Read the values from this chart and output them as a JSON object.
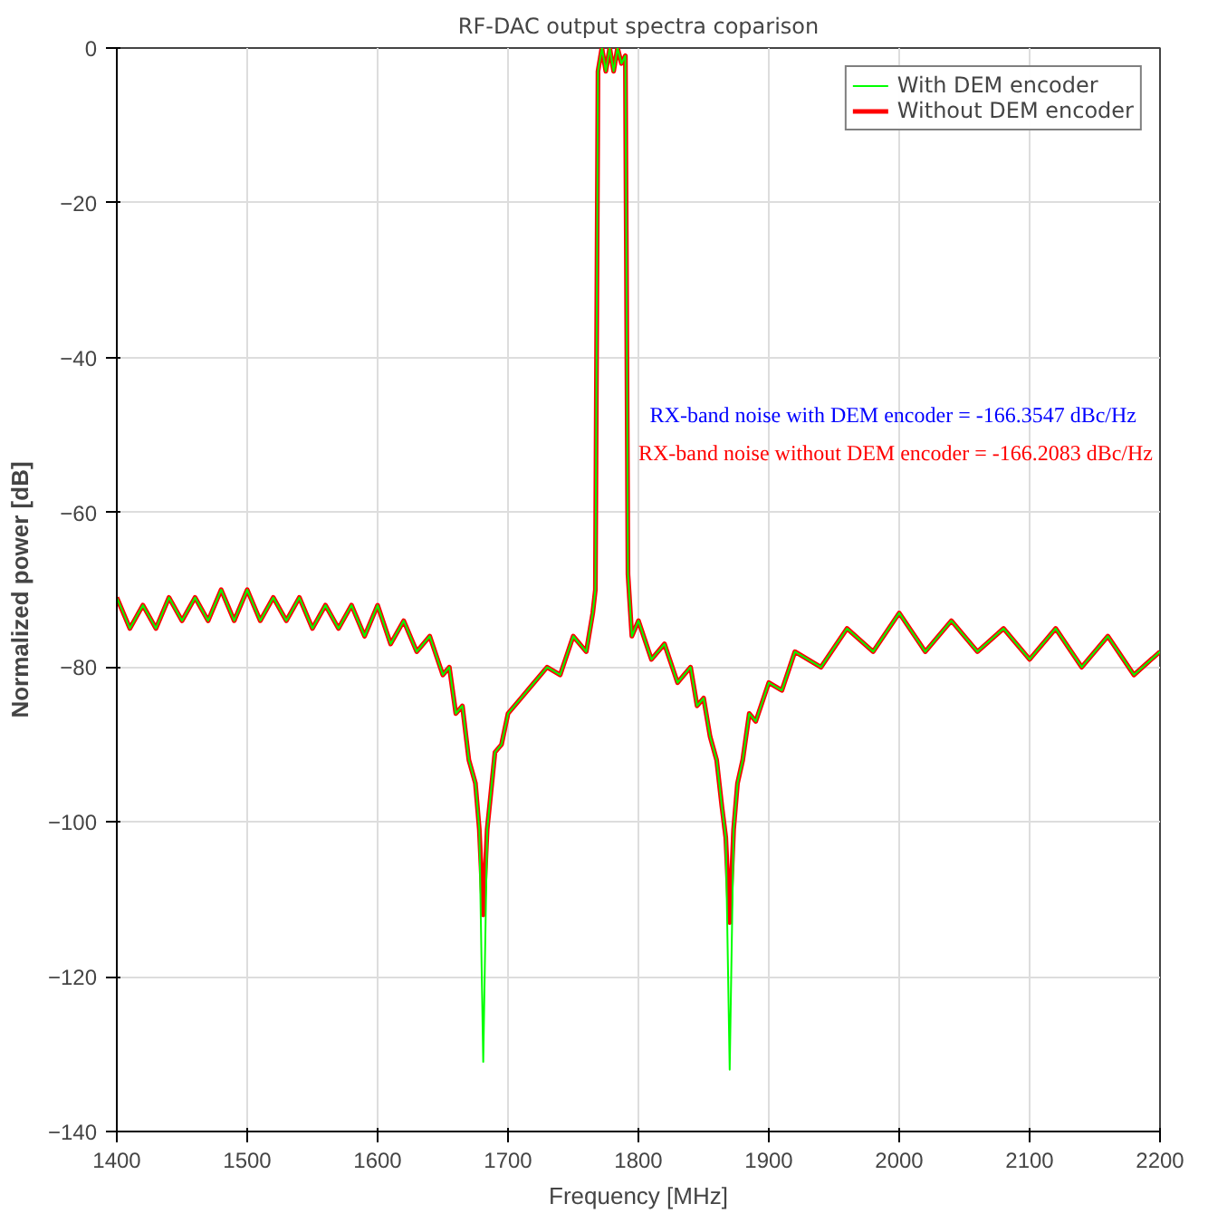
{
  "chart_data": {
    "type": "line",
    "title": "RF-DAC output spectra coparison",
    "xlabel": "Frequency [MHz]",
    "ylabel": "Normalized power [dB]",
    "xlim": [
      1400,
      2200
    ],
    "ylim": [
      -140,
      0
    ],
    "xticks": [
      1400,
      1500,
      1600,
      1700,
      1800,
      1900,
      2000,
      2100,
      2200
    ],
    "yticks": [
      -140,
      -120,
      -100,
      -80,
      -60,
      -40,
      -20,
      0
    ],
    "grid": true,
    "legend": "top right",
    "x": [
      1400,
      1410,
      1420,
      1430,
      1440,
      1450,
      1460,
      1470,
      1480,
      1490,
      1500,
      1510,
      1520,
      1530,
      1540,
      1550,
      1560,
      1570,
      1580,
      1590,
      1600,
      1610,
      1620,
      1630,
      1640,
      1650,
      1655,
      1660,
      1665,
      1670,
      1675,
      1678,
      1681,
      1684,
      1687,
      1690,
      1695,
      1700,
      1710,
      1720,
      1730,
      1740,
      1750,
      1760,
      1765,
      1767,
      1769,
      1772,
      1775,
      1778,
      1781,
      1784,
      1787,
      1790,
      1792,
      1795,
      1800,
      1810,
      1820,
      1830,
      1840,
      1845,
      1850,
      1855,
      1860,
      1864,
      1867,
      1870,
      1873,
      1876,
      1880,
      1885,
      1890,
      1900,
      1910,
      1920,
      1940,
      1960,
      1980,
      2000,
      2020,
      2040,
      2060,
      2080,
      2100,
      2120,
      2140,
      2160,
      2180,
      2200
    ],
    "series": [
      {
        "name": "With DEM encoder",
        "color": "#00ff00",
        "values": [
          -71,
          -75,
          -72,
          -75,
          -71,
          -74,
          -71,
          -74,
          -70,
          -74,
          -70,
          -74,
          -71,
          -74,
          -71,
          -75,
          -72,
          -75,
          -72,
          -76,
          -72,
          -77,
          -74,
          -78,
          -76,
          -81,
          -80,
          -86,
          -85,
          -92,
          -95,
          -101,
          -131,
          -101,
          -96,
          -91,
          -90,
          -86,
          -84,
          -82,
          -80,
          -81,
          -76,
          -78,
          -73,
          -70,
          -3,
          0,
          -3,
          0,
          -3,
          0,
          -2,
          -1,
          -68,
          -76,
          -74,
          -79,
          -77,
          -82,
          -80,
          -85,
          -84,
          -89,
          -92,
          -98,
          -102,
          -132,
          -101,
          -95,
          -92,
          -86,
          -87,
          -82,
          -83,
          -78,
          -80,
          -75,
          -78,
          -73,
          -78,
          -74,
          -78,
          -75,
          -79,
          -75,
          -80,
          -76,
          -81,
          -78
        ]
      },
      {
        "name": "Without DEM encoder",
        "color": "#ff0000",
        "values": [
          -71,
          -75,
          -72,
          -75,
          -71,
          -74,
          -71,
          -74,
          -70,
          -74,
          -70,
          -74,
          -71,
          -74,
          -71,
          -75,
          -72,
          -75,
          -72,
          -76,
          -72,
          -77,
          -74,
          -78,
          -76,
          -81,
          -80,
          -86,
          -85,
          -92,
          -95,
          -101,
          -112,
          -101,
          -96,
          -91,
          -90,
          -86,
          -84,
          -82,
          -80,
          -81,
          -76,
          -78,
          -73,
          -70,
          -3,
          0,
          -3,
          0,
          -3,
          0,
          -2,
          -1,
          -68,
          -76,
          -74,
          -79,
          -77,
          -82,
          -80,
          -85,
          -84,
          -89,
          -92,
          -98,
          -102,
          -113,
          -101,
          -95,
          -92,
          -86,
          -87,
          -82,
          -83,
          -78,
          -80,
          -75,
          -78,
          -73,
          -78,
          -74,
          -78,
          -75,
          -79,
          -75,
          -80,
          -76,
          -81,
          -78
        ]
      }
    ],
    "annotations": [
      "RX-band noise with DEM encoder    = -166.3547 dBc/Hz",
      "RX-band noise without DEM encoder = -166.2083 dBc/Hz"
    ]
  }
}
